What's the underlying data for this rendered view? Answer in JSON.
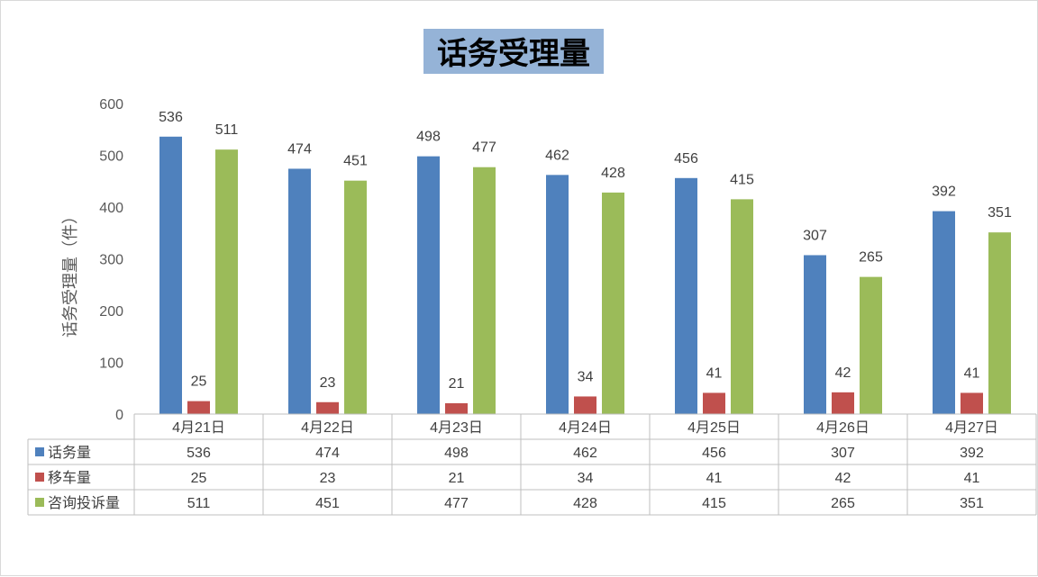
{
  "chart_data": {
    "type": "bar",
    "title": "话务受理量",
    "ylabel": "话务受理量（件）",
    "xlabel": "",
    "ylim": [
      0,
      600
    ],
    "yticks": [
      0,
      100,
      200,
      300,
      400,
      500,
      600
    ],
    "grid": false,
    "legend": "data-table-left",
    "categories": [
      "4月21日",
      "4月22日",
      "4月23日",
      "4月24日",
      "4月25日",
      "4月26日",
      "4月27日"
    ],
    "series": [
      {
        "name": "话务量",
        "color": "#4f81bd",
        "values": [
          536,
          474,
          498,
          462,
          456,
          307,
          392
        ]
      },
      {
        "name": "移车量",
        "color": "#c0504d",
        "values": [
          25,
          23,
          21,
          34,
          41,
          42,
          41
        ]
      },
      {
        "name": "咨询投诉量",
        "color": "#9bbb59",
        "values": [
          511,
          451,
          477,
          428,
          415,
          265,
          351
        ]
      }
    ],
    "title_background": "#95b3d7",
    "data_labels": true,
    "data_table": true
  }
}
